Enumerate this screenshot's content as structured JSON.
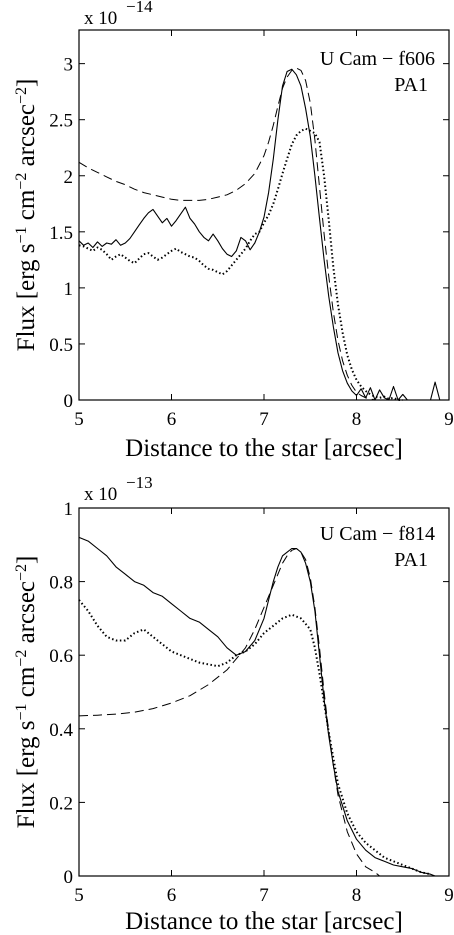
{
  "chart_data": [
    {
      "type": "line",
      "annotation": [
        "U Cam − f606",
        "PA1"
      ],
      "xlabel": "Distance to the star [arcsec]",
      "ylabel_parts": [
        "Flux [erg s",
        "−1",
        " cm",
        "−2",
        " arcsec",
        "−2",
        "]"
      ],
      "multiplier_base": "x 10",
      "multiplier_exp": "−14",
      "xlim": [
        5,
        9
      ],
      "ylim": [
        0,
        3.3
      ],
      "xticks": [
        5,
        6,
        7,
        8,
        9
      ],
      "xtick_labels": [
        "5",
        "6",
        "7",
        "8",
        "9"
      ],
      "yticks": [
        0,
        0.5,
        1,
        1.5,
        2,
        2.5,
        3
      ],
      "ytick_labels": [
        "0",
        "0.5",
        "1",
        "1.5",
        "2",
        "2.5",
        "3"
      ],
      "series": [
        {
          "style": "solid",
          "x": [
            5.0,
            5.05,
            5.1,
            5.15,
            5.2,
            5.25,
            5.3,
            5.35,
            5.4,
            5.45,
            5.5,
            5.55,
            5.6,
            5.65,
            5.7,
            5.75,
            5.8,
            5.85,
            5.9,
            5.95,
            6.0,
            6.05,
            6.1,
            6.15,
            6.2,
            6.25,
            6.3,
            6.35,
            6.4,
            6.45,
            6.5,
            6.55,
            6.6,
            6.65,
            6.7,
            6.75,
            6.8,
            6.85,
            6.9,
            6.95,
            7.0,
            7.05,
            7.1,
            7.15,
            7.2,
            7.25,
            7.3,
            7.35,
            7.4,
            7.45,
            7.5,
            7.55,
            7.6,
            7.65,
            7.7,
            7.75,
            7.8,
            7.85,
            7.9,
            7.95,
            8.0,
            8.05,
            8.1,
            8.15,
            8.2,
            8.25,
            8.3,
            8.35,
            8.4,
            8.45,
            8.5,
            8.55,
            8.6,
            8.65,
            8.7,
            8.75,
            8.8,
            8.85,
            8.9
          ],
          "y": [
            1.42,
            1.38,
            1.4,
            1.36,
            1.41,
            1.37,
            1.4,
            1.39,
            1.43,
            1.38,
            1.4,
            1.44,
            1.5,
            1.56,
            1.62,
            1.67,
            1.7,
            1.64,
            1.58,
            1.62,
            1.55,
            1.6,
            1.66,
            1.72,
            1.62,
            1.57,
            1.5,
            1.45,
            1.42,
            1.48,
            1.42,
            1.35,
            1.3,
            1.28,
            1.33,
            1.45,
            1.42,
            1.34,
            1.4,
            1.5,
            1.63,
            1.85,
            2.15,
            2.5,
            2.8,
            2.93,
            2.95,
            2.9,
            2.8,
            2.6,
            2.35,
            2.0,
            1.62,
            1.25,
            0.92,
            0.65,
            0.42,
            0.26,
            0.15,
            0.08,
            0.04,
            0.1,
            0.02,
            0.11,
            0.0,
            0.09,
            0.02,
            0.0,
            0.12,
            0.0,
            0.05,
            0.0,
            0.0,
            0.0,
            0.0,
            0.0,
            0.0,
            0.16,
            0.0
          ]
        },
        {
          "style": "dotted",
          "x": [
            5.0,
            5.05,
            5.1,
            5.15,
            5.2,
            5.25,
            5.3,
            5.35,
            5.4,
            5.45,
            5.5,
            5.55,
            5.6,
            5.65,
            5.7,
            5.75,
            5.8,
            5.85,
            5.9,
            5.95,
            6.0,
            6.05,
            6.1,
            6.15,
            6.2,
            6.25,
            6.3,
            6.35,
            6.4,
            6.45,
            6.5,
            6.55,
            6.6,
            6.65,
            6.7,
            6.75,
            6.8,
            6.85,
            6.9,
            6.95,
            7.0,
            7.05,
            7.1,
            7.15,
            7.2,
            7.25,
            7.3,
            7.35,
            7.4,
            7.45,
            7.5,
            7.55,
            7.6,
            7.65,
            7.7,
            7.75,
            7.8,
            7.85,
            7.9,
            7.95,
            8.0,
            8.05,
            8.1,
            8.15,
            8.2,
            8.25,
            8.3,
            8.35,
            8.4,
            8.45,
            8.5
          ],
          "y": [
            1.38,
            1.37,
            1.35,
            1.33,
            1.36,
            1.34,
            1.3,
            1.25,
            1.28,
            1.3,
            1.27,
            1.24,
            1.22,
            1.26,
            1.3,
            1.31,
            1.28,
            1.25,
            1.27,
            1.3,
            1.33,
            1.35,
            1.32,
            1.3,
            1.28,
            1.27,
            1.24,
            1.2,
            1.17,
            1.16,
            1.14,
            1.12,
            1.15,
            1.2,
            1.25,
            1.3,
            1.35,
            1.42,
            1.48,
            1.5,
            1.58,
            1.65,
            1.75,
            1.88,
            2.02,
            2.15,
            2.28,
            2.36,
            2.4,
            2.42,
            2.4,
            2.38,
            2.3,
            2.0,
            1.6,
            1.18,
            0.85,
            0.6,
            0.4,
            0.27,
            0.18,
            0.12,
            0.08,
            0.05,
            0.03,
            0.02,
            0.03,
            0.01,
            0.02,
            0.0,
            0.0
          ]
        },
        {
          "style": "dashed",
          "x": [
            5.0,
            5.1,
            5.2,
            5.3,
            5.4,
            5.5,
            5.6,
            5.7,
            5.8,
            5.9,
            6.0,
            6.1,
            6.2,
            6.3,
            6.4,
            6.5,
            6.6,
            6.7,
            6.8,
            6.9,
            7.0,
            7.05,
            7.1,
            7.15,
            7.2,
            7.25,
            7.3,
            7.35,
            7.4,
            7.45,
            7.5,
            7.55,
            7.6,
            7.65,
            7.7,
            7.75,
            7.8,
            7.85,
            7.9,
            7.95,
            8.0,
            8.05,
            8.1,
            8.15,
            8.2,
            8.25
          ],
          "y": [
            2.12,
            2.07,
            2.03,
            1.99,
            1.95,
            1.92,
            1.88,
            1.85,
            1.83,
            1.81,
            1.79,
            1.78,
            1.78,
            1.78,
            1.79,
            1.81,
            1.83,
            1.87,
            1.93,
            2.02,
            2.18,
            2.3,
            2.45,
            2.62,
            2.78,
            2.88,
            2.94,
            2.96,
            2.94,
            2.85,
            2.65,
            2.32,
            1.9,
            1.48,
            1.1,
            0.78,
            0.53,
            0.35,
            0.22,
            0.13,
            0.07,
            0.04,
            0.02,
            0.01,
            0.0,
            0.0
          ]
        }
      ]
    },
    {
      "type": "line",
      "annotation": [
        "U Cam − f814",
        "PA1"
      ],
      "xlabel": "Distance to the star [arcsec]",
      "ylabel_parts": [
        "Flux [erg s",
        "−1",
        " cm",
        "−2",
        " arcsec",
        "−2",
        "]"
      ],
      "multiplier_base": "x 10",
      "multiplier_exp": "−13",
      "xlim": [
        5,
        9
      ],
      "ylim": [
        0,
        1
      ],
      "xticks": [
        5,
        6,
        7,
        8,
        9
      ],
      "xtick_labels": [
        "5",
        "6",
        "7",
        "8",
        "9"
      ],
      "yticks": [
        0,
        0.2,
        0.4,
        0.6,
        0.8,
        1
      ],
      "ytick_labels": [
        "0",
        "0.2",
        "0.4",
        "0.6",
        "0.8",
        "1"
      ],
      "series": [
        {
          "style": "solid",
          "x": [
            5.0,
            5.1,
            5.2,
            5.3,
            5.4,
            5.5,
            5.6,
            5.7,
            5.8,
            5.9,
            6.0,
            6.1,
            6.2,
            6.3,
            6.4,
            6.5,
            6.6,
            6.7,
            6.8,
            6.9,
            7.0,
            7.05,
            7.1,
            7.15,
            7.2,
            7.25,
            7.3,
            7.35,
            7.4,
            7.45,
            7.5,
            7.55,
            7.6,
            7.65,
            7.7,
            7.75,
            7.8,
            7.9,
            8.0,
            8.1,
            8.2,
            8.3,
            8.4,
            8.5,
            8.6,
            8.7,
            8.8,
            8.85
          ],
          "y": [
            0.92,
            0.91,
            0.89,
            0.87,
            0.84,
            0.82,
            0.8,
            0.79,
            0.77,
            0.76,
            0.74,
            0.72,
            0.7,
            0.69,
            0.67,
            0.65,
            0.62,
            0.6,
            0.61,
            0.64,
            0.7,
            0.75,
            0.8,
            0.84,
            0.87,
            0.88,
            0.89,
            0.89,
            0.88,
            0.85,
            0.8,
            0.72,
            0.6,
            0.48,
            0.38,
            0.3,
            0.23,
            0.15,
            0.1,
            0.07,
            0.05,
            0.04,
            0.03,
            0.025,
            0.02,
            0.01,
            0.005,
            0.0
          ]
        },
        {
          "style": "dotted",
          "x": [
            5.0,
            5.1,
            5.2,
            5.3,
            5.4,
            5.5,
            5.6,
            5.7,
            5.8,
            5.9,
            6.0,
            6.1,
            6.2,
            6.3,
            6.4,
            6.5,
            6.6,
            6.7,
            6.8,
            6.9,
            7.0,
            7.1,
            7.2,
            7.3,
            7.4,
            7.5,
            7.55,
            7.6,
            7.65,
            7.7,
            7.75,
            7.8,
            7.9,
            8.0,
            8.1,
            8.2,
            8.3,
            8.4,
            8.5,
            8.6,
            8.7,
            8.8
          ],
          "y": [
            0.75,
            0.72,
            0.68,
            0.65,
            0.64,
            0.64,
            0.66,
            0.67,
            0.65,
            0.63,
            0.61,
            0.6,
            0.59,
            0.58,
            0.575,
            0.57,
            0.58,
            0.6,
            0.61,
            0.63,
            0.66,
            0.68,
            0.7,
            0.71,
            0.7,
            0.67,
            0.62,
            0.55,
            0.47,
            0.39,
            0.32,
            0.25,
            0.17,
            0.12,
            0.09,
            0.07,
            0.05,
            0.04,
            0.03,
            0.02,
            0.01,
            0.005
          ]
        },
        {
          "style": "dashed",
          "x": [
            5.0,
            5.2,
            5.4,
            5.6,
            5.8,
            6.0,
            6.2,
            6.4,
            6.6,
            6.8,
            6.9,
            7.0,
            7.1,
            7.2,
            7.25,
            7.3,
            7.35,
            7.4,
            7.45,
            7.5,
            7.55,
            7.6,
            7.65,
            7.7,
            7.75,
            7.8,
            7.9,
            8.0,
            8.1,
            8.2,
            8.25
          ],
          "y": [
            0.435,
            0.437,
            0.44,
            0.445,
            0.455,
            0.47,
            0.49,
            0.52,
            0.56,
            0.62,
            0.67,
            0.73,
            0.79,
            0.85,
            0.87,
            0.885,
            0.89,
            0.88,
            0.86,
            0.81,
            0.73,
            0.62,
            0.5,
            0.39,
            0.3,
            0.22,
            0.12,
            0.06,
            0.025,
            0.01,
            0.0
          ]
        }
      ]
    }
  ]
}
